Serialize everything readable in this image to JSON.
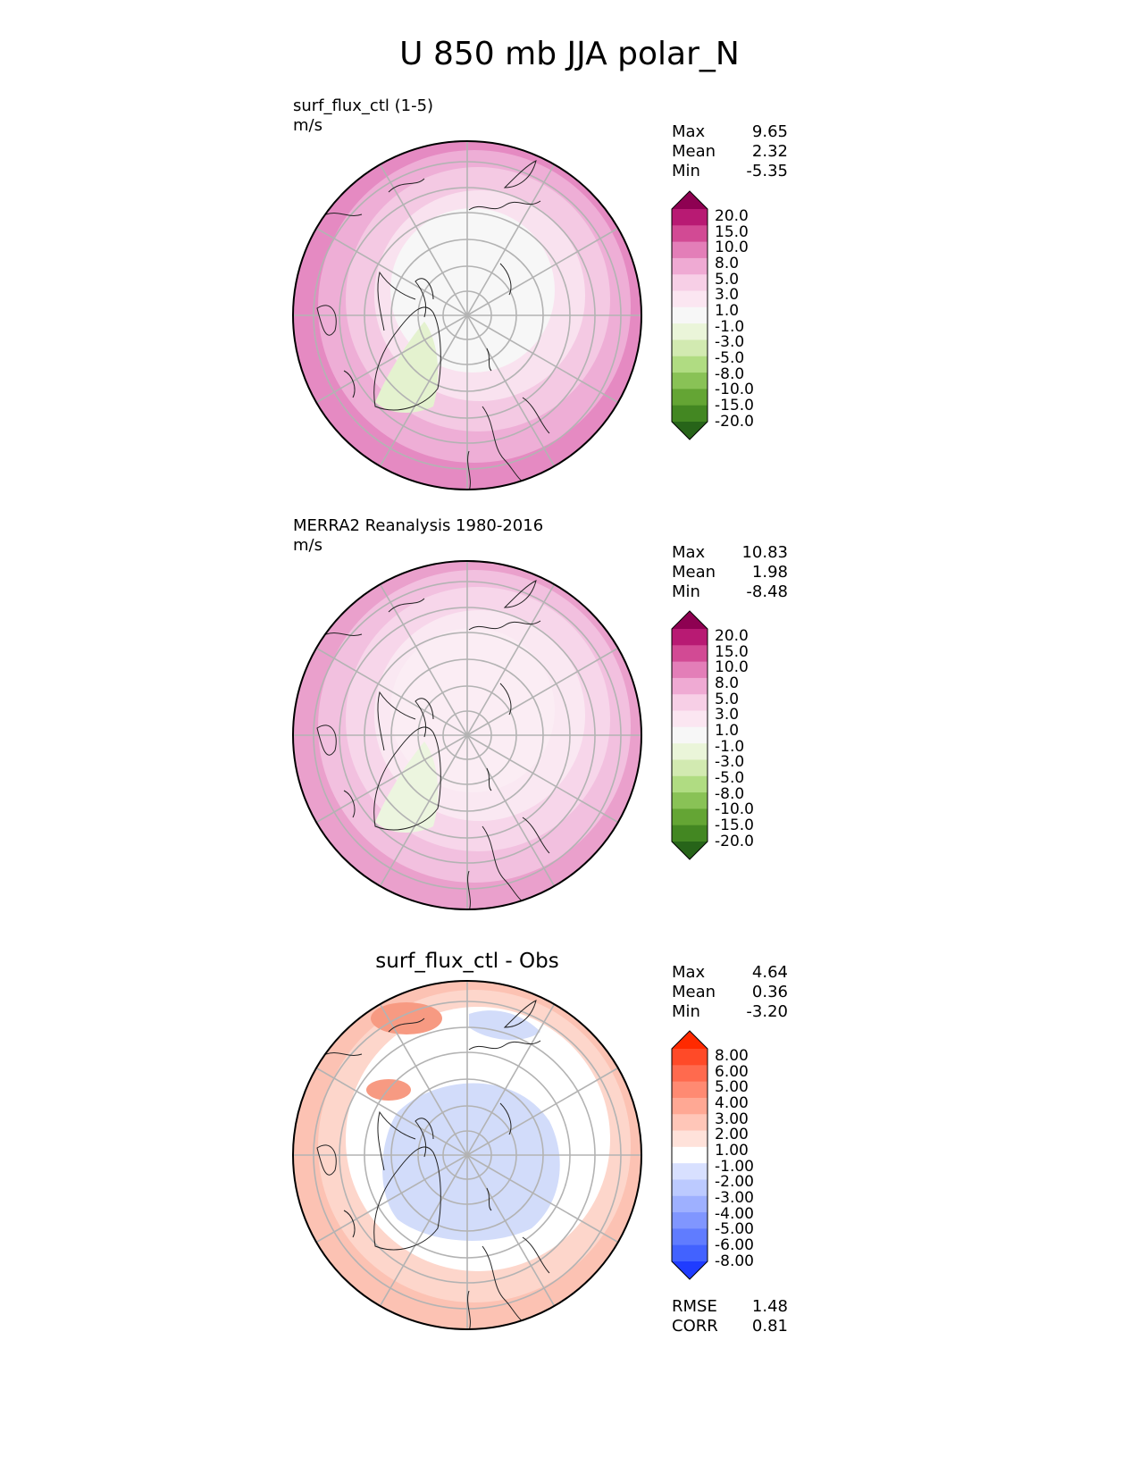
{
  "figure": {
    "title": "U 850 mb JJA polar_N"
  },
  "panels": [
    {
      "id": "test",
      "label": "surf_flux_ctl (1-5)",
      "units": "m/s",
      "stats": {
        "max_label": "Max",
        "max": "9.65",
        "mean_label": "Mean",
        "mean": "2.32",
        "min_label": "Min",
        "min": "-5.35"
      },
      "colorbar": {
        "ticks": [
          "20.0",
          "15.0",
          "10.0",
          "8.0",
          "5.0",
          "3.0",
          "1.0",
          "-1.0",
          "-3.0",
          "-5.0",
          "-8.0",
          "-10.0",
          "-15.0",
          "-20.0"
        ],
        "colors": [
          "#8e0152",
          "#b81a73",
          "#d24a94",
          "#e37eb8",
          "#efaad3",
          "#f7cfe6",
          "#fbe6f1",
          "#f7f7f7",
          "#eaf5d9",
          "#d2eab1",
          "#b0dc82",
          "#89c256",
          "#64a534",
          "#438722",
          "#276419"
        ]
      },
      "zone_colors": [
        "#e58ac2",
        "#eeaed6",
        "#f4c9e3",
        "#f9e2ef",
        "#f7f7f7"
      ],
      "green_color": "#e4f2cf"
    },
    {
      "id": "ref",
      "label": "MERRA2 Reanalysis 1980-2016",
      "units": "m/s",
      "stats": {
        "max_label": "Max",
        "max": "10.83",
        "mean_label": "Mean",
        "mean": "1.98",
        "min_label": "Min",
        "min": "-8.48"
      },
      "colorbar": {
        "ticks": [
          "20.0",
          "15.0",
          "10.0",
          "8.0",
          "5.0",
          "3.0",
          "1.0",
          "-1.0",
          "-3.0",
          "-5.0",
          "-8.0",
          "-10.0",
          "-15.0",
          "-20.0"
        ],
        "colors": [
          "#8e0152",
          "#b81a73",
          "#d24a94",
          "#e37eb8",
          "#efaad3",
          "#f7cfe6",
          "#fbe6f1",
          "#f7f7f7",
          "#eaf5d9",
          "#d2eab1",
          "#b0dc82",
          "#89c256",
          "#64a534",
          "#438722",
          "#276419"
        ]
      },
      "zone_colors": [
        "#eaa0cc",
        "#f2c0df",
        "#f7d6ea",
        "#fae8f2",
        "#fbedf4"
      ],
      "green_color": "#ecf5df"
    },
    {
      "id": "diff",
      "title": "surf_flux_ctl - Obs",
      "stats": {
        "max_label": "Max",
        "max": "4.64",
        "mean_label": "Mean",
        "mean": "0.36",
        "min_label": "Min",
        "min": "-3.20"
      },
      "metrics": {
        "rmse_label": "RMSE",
        "rmse": "1.48",
        "corr_label": "CORR",
        "corr": "0.81"
      },
      "colorbar": {
        "ticks": [
          "8.00",
          "6.00",
          "5.00",
          "4.00",
          "3.00",
          "2.00",
          "1.00",
          "-1.00",
          "-2.00",
          "-3.00",
          "-4.00",
          "-5.00",
          "-6.00",
          "-8.00"
        ],
        "colors": [
          "#ff2a00",
          "#ff4a28",
          "#ff6a4e",
          "#ff8a72",
          "#ffa894",
          "#ffc6b8",
          "#ffe2da",
          "#ffffff",
          "#d8e0ff",
          "#bccaff",
          "#9eb0ff",
          "#8096ff",
          "#607cff",
          "#4262ff",
          "#1f3cff"
        ]
      },
      "zone_colors": [
        "#fcc2b3",
        "#fdd6cb",
        "#ffffff",
        "#ffffff",
        "#ffffff"
      ],
      "blue_color": "#d2dcfa",
      "red_color": "#f79a82"
    }
  ]
}
